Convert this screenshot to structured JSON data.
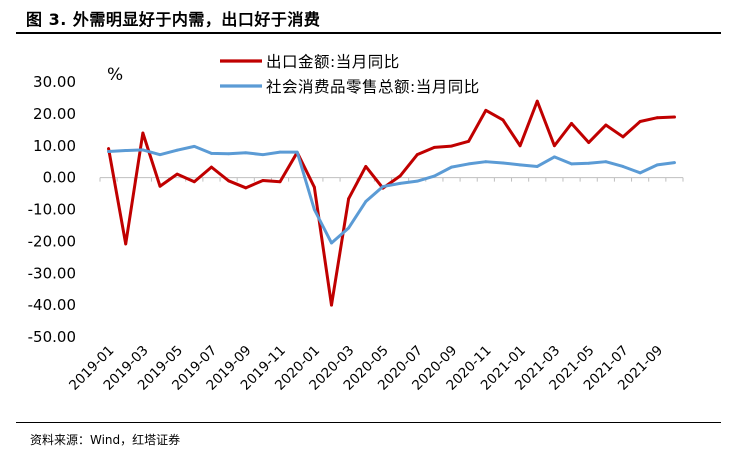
{
  "figure": {
    "title": "图 3. 外需明显好于内需，出口好于消费",
    "source": "资料来源：Wind，红塔证券"
  },
  "chart_data": {
    "type": "line",
    "unit": "%",
    "ylim": [
      -50,
      30
    ],
    "yticks": [
      "30.00",
      "20.00",
      "10.00",
      "0.00",
      "-10.00",
      "-20.00",
      "-30.00",
      "-40.00",
      "-50.00"
    ],
    "ytick_values": [
      30,
      20,
      10,
      0,
      -10,
      -20,
      -30,
      -40,
      -50
    ],
    "x": [
      "2019-01",
      "2019-02",
      "2019-03",
      "2019-04",
      "2019-05",
      "2019-06",
      "2019-07",
      "2019-08",
      "2019-09",
      "2019-10",
      "2019-11",
      "2019-12",
      "2020-01",
      "2020-02",
      "2020-03",
      "2020-04",
      "2020-05",
      "2020-06",
      "2020-07",
      "2020-08",
      "2020-09",
      "2020-10",
      "2020-11",
      "2020-12",
      "2021-01",
      "2021-02",
      "2021-03",
      "2021-04",
      "2021-05",
      "2021-06",
      "2021-07",
      "2021-08",
      "2021-09",
      "2021-10"
    ],
    "xtick_labels": [
      "2019-01",
      "2019-03",
      "2019-05",
      "2019-07",
      "2019-09",
      "2019-11",
      "2020-01",
      "2020-03",
      "2020-05",
      "2020-07",
      "2020-09",
      "2020-11",
      "2021-01",
      "2021-03",
      "2021-05",
      "2021-07",
      "2021-09"
    ],
    "grid": false,
    "legend_position": "top-center",
    "series": [
      {
        "name": "出口金额:当月同比",
        "color": "#c00000",
        "values": [
          9.1,
          -20.8,
          14.0,
          -2.7,
          1.1,
          -1.3,
          3.3,
          -1.0,
          -3.2,
          -0.9,
          -1.3,
          7.9,
          -3.0,
          -40.0,
          -6.6,
          3.5,
          -3.3,
          0.5,
          7.2,
          9.5,
          9.9,
          11.4,
          21.1,
          18.1,
          10.0,
          24.0,
          10.0,
          17.0,
          11.0,
          16.5,
          12.8,
          17.6,
          18.8,
          19.0
        ]
      },
      {
        "name": "社会消费品零售总额:当月同比",
        "color": "#5b9bd5",
        "values": [
          8.2,
          8.5,
          8.7,
          7.2,
          8.6,
          9.8,
          7.6,
          7.5,
          7.8,
          7.2,
          8.0,
          8.0,
          -10.0,
          -20.5,
          -15.8,
          -7.5,
          -2.8,
          -1.8,
          -1.1,
          0.5,
          3.3,
          4.3,
          5.0,
          4.6,
          4.0,
          3.5,
          6.5,
          4.3,
          4.5,
          5.0,
          3.5,
          1.5,
          4.0,
          4.7
        ]
      }
    ]
  }
}
